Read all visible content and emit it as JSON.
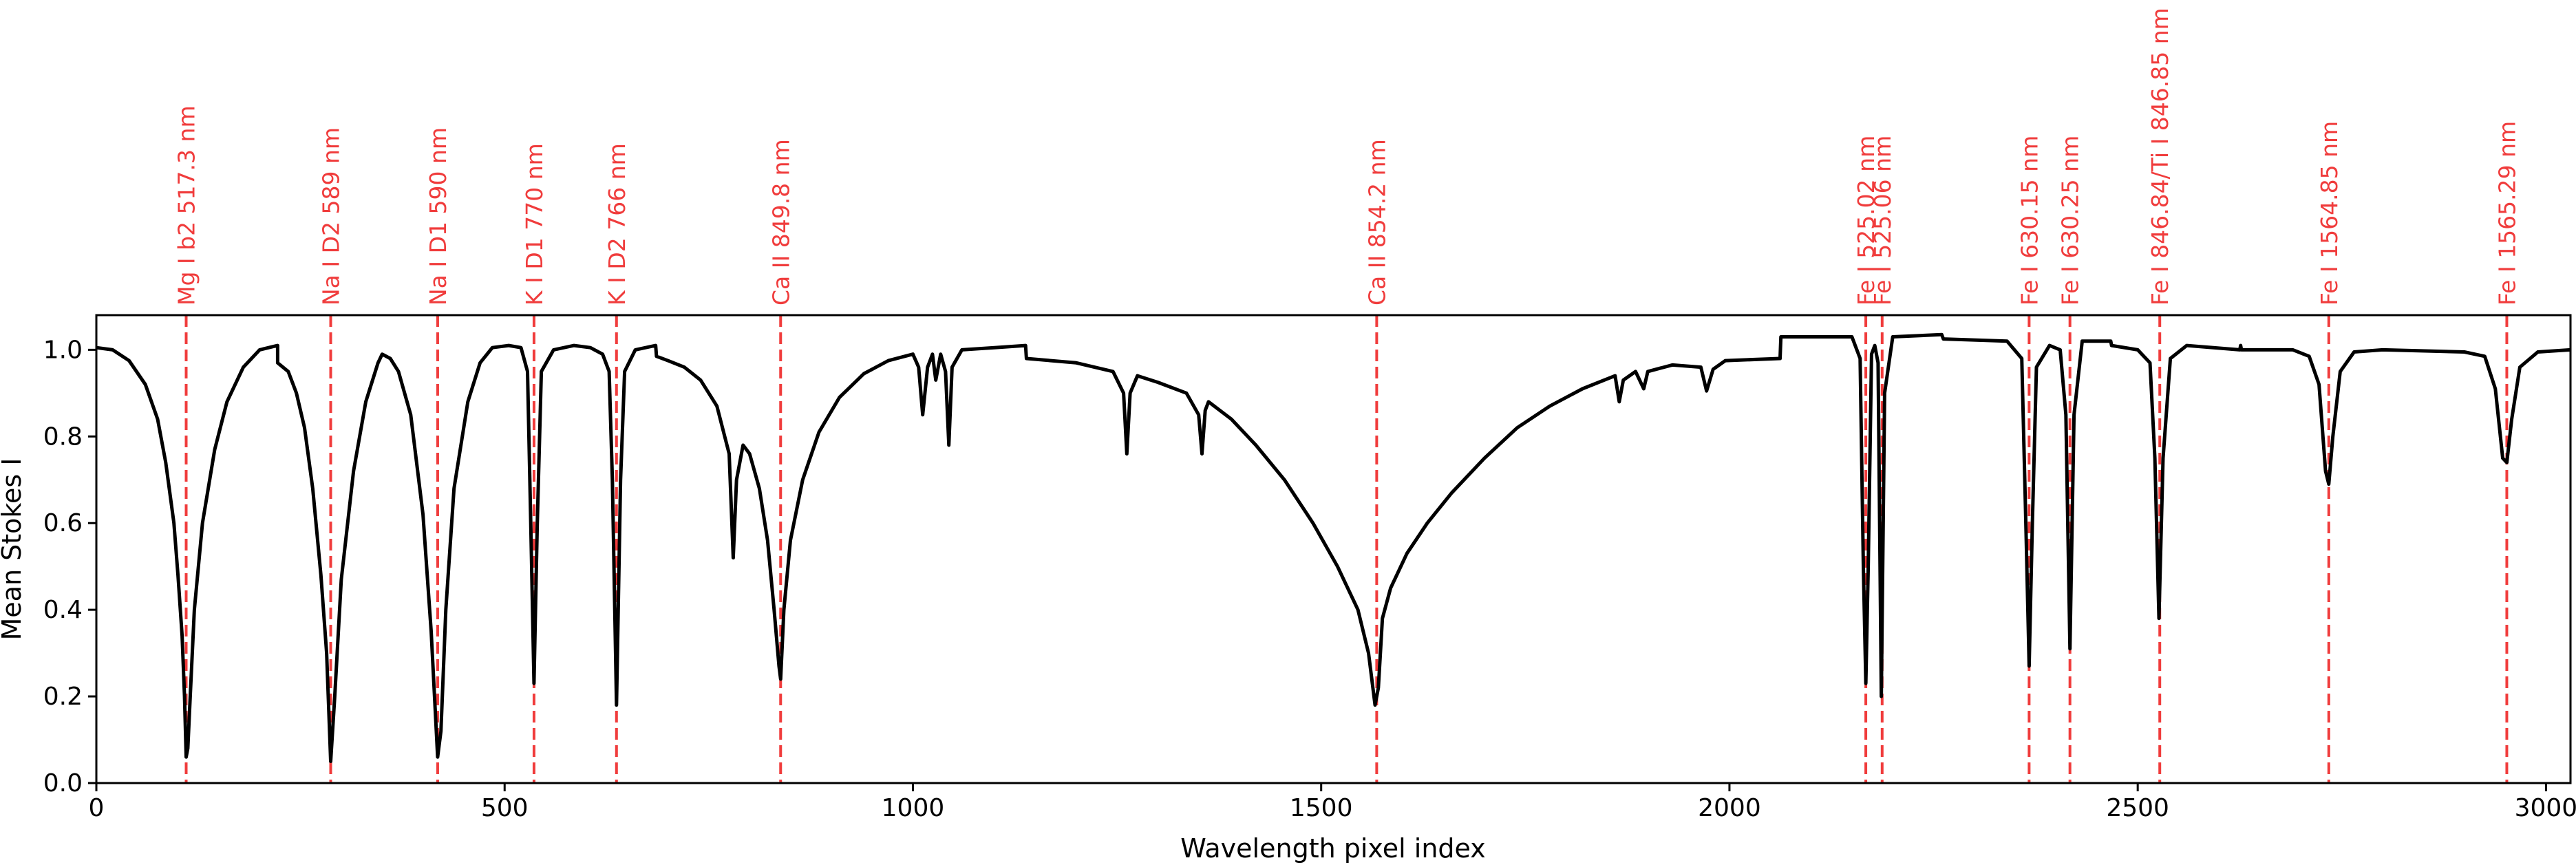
{
  "chart_data": {
    "type": "line",
    "title": "",
    "xlabel": "Wavelength pixel index",
    "ylabel": "Mean Stokes I",
    "xlim": [
      0,
      3030
    ],
    "ylim": [
      0.0,
      1.08
    ],
    "grid": false,
    "xticks": [
      0,
      500,
      1000,
      1500,
      2000,
      2500,
      3000
    ],
    "xtick_labels": [
      "0",
      "500",
      "1000",
      "1500",
      "2000",
      "2500",
      "3000"
    ],
    "yticks": [
      0.0,
      0.2,
      0.4,
      0.6,
      0.8,
      1.0
    ],
    "ytick_labels": [
      "0.0",
      "0.2",
      "0.4",
      "0.6",
      "0.8",
      "1.0"
    ],
    "series_color": "#000000",
    "marker_color": "#f03c3c",
    "spectral_lines": [
      {
        "label": "Mg I b2 517.3 nm",
        "x": 110
      },
      {
        "label": "Na I D2 589 nm",
        "x": 287
      },
      {
        "label": "Na I D1 590 nm",
        "x": 418
      },
      {
        "label": "K I D1 770 nm",
        "x": 536
      },
      {
        "label": "K I D2 766 nm",
        "x": 637
      },
      {
        "label": "Ca II 849.8 nm",
        "x": 838
      },
      {
        "label": "Ca II 854.2 nm",
        "x": 1568
      },
      {
        "label": "Fe I 525.02 nm",
        "x": 2167
      },
      {
        "label": "Fe I 525.06 nm",
        "x": 2187
      },
      {
        "label": "Fe I 630.15 nm",
        "x": 2367
      },
      {
        "label": "Fe I 630.25 nm",
        "x": 2417
      },
      {
        "label": "Fe I 846.84/Ti I 846.85 nm",
        "x": 2527
      },
      {
        "label": "Fe I 1564.85 nm",
        "x": 2734
      },
      {
        "label": "Fe I 1565.29 nm",
        "x": 2952
      }
    ],
    "series": [
      {
        "name": "Mean Stokes I",
        "points": [
          [
            0,
            1.005
          ],
          [
            20,
            1.0
          ],
          [
            40,
            0.975
          ],
          [
            60,
            0.92
          ],
          [
            75,
            0.84
          ],
          [
            85,
            0.74
          ],
          [
            95,
            0.6
          ],
          [
            100,
            0.48
          ],
          [
            105,
            0.34
          ],
          [
            108,
            0.2
          ],
          [
            110,
            0.06
          ],
          [
            112,
            0.08
          ],
          [
            115,
            0.2
          ],
          [
            120,
            0.4
          ],
          [
            130,
            0.6
          ],
          [
            145,
            0.77
          ],
          [
            160,
            0.88
          ],
          [
            180,
            0.96
          ],
          [
            200,
            1.0
          ],
          [
            222,
            1.01
          ],
          [
            222,
            0.97
          ],
          [
            235,
            0.95
          ],
          [
            245,
            0.9
          ],
          [
            255,
            0.82
          ],
          [
            265,
            0.68
          ],
          [
            275,
            0.48
          ],
          [
            282,
            0.3
          ],
          [
            287,
            0.05
          ],
          [
            292,
            0.2
          ],
          [
            300,
            0.47
          ],
          [
            315,
            0.72
          ],
          [
            330,
            0.88
          ],
          [
            345,
            0.97
          ],
          [
            350,
            0.99
          ],
          [
            360,
            0.98
          ],
          [
            370,
            0.95
          ],
          [
            385,
            0.85
          ],
          [
            400,
            0.62
          ],
          [
            410,
            0.35
          ],
          [
            418,
            0.06
          ],
          [
            422,
            0.12
          ],
          [
            428,
            0.4
          ],
          [
            438,
            0.68
          ],
          [
            455,
            0.88
          ],
          [
            470,
            0.97
          ],
          [
            485,
            1.005
          ],
          [
            505,
            1.01
          ],
          [
            520,
            1.005
          ],
          [
            528,
            0.95
          ],
          [
            532,
            0.6
          ],
          [
            536,
            0.23
          ],
          [
            540,
            0.6
          ],
          [
            545,
            0.95
          ],
          [
            560,
            1.0
          ],
          [
            585,
            1.01
          ],
          [
            605,
            1.005
          ],
          [
            620,
            0.99
          ],
          [
            628,
            0.95
          ],
          [
            632,
            0.7
          ],
          [
            637,
            0.18
          ],
          [
            642,
            0.7
          ],
          [
            647,
            0.95
          ],
          [
            660,
            1.0
          ],
          [
            685,
            1.01
          ],
          [
            686,
            0.985
          ],
          [
            700,
            0.975
          ],
          [
            720,
            0.96
          ],
          [
            740,
            0.93
          ],
          [
            760,
            0.87
          ],
          [
            775,
            0.76
          ],
          [
            780,
            0.52
          ],
          [
            784,
            0.7
          ],
          [
            792,
            0.78
          ],
          [
            800,
            0.76
          ],
          [
            812,
            0.68
          ],
          [
            822,
            0.56
          ],
          [
            830,
            0.4
          ],
          [
            836,
            0.27
          ],
          [
            838,
            0.24
          ],
          [
            842,
            0.4
          ],
          [
            850,
            0.56
          ],
          [
            865,
            0.7
          ],
          [
            885,
            0.81
          ],
          [
            910,
            0.89
          ],
          [
            940,
            0.945
          ],
          [
            970,
            0.975
          ],
          [
            1000,
            0.99
          ],
          [
            1007,
            0.96
          ],
          [
            1012,
            0.85
          ],
          [
            1018,
            0.96
          ],
          [
            1024,
            0.99
          ],
          [
            1028,
            0.93
          ],
          [
            1034,
            0.99
          ],
          [
            1040,
            0.95
          ],
          [
            1044,
            0.78
          ],
          [
            1048,
            0.96
          ],
          [
            1060,
            1.0
          ],
          [
            1100,
            1.005
          ],
          [
            1138,
            1.01
          ],
          [
            1139,
            0.98
          ],
          [
            1200,
            0.97
          ],
          [
            1245,
            0.95
          ],
          [
            1258,
            0.9
          ],
          [
            1262,
            0.76
          ],
          [
            1266,
            0.9
          ],
          [
            1275,
            0.94
          ],
          [
            1300,
            0.925
          ],
          [
            1335,
            0.9
          ],
          [
            1350,
            0.85
          ],
          [
            1354,
            0.76
          ],
          [
            1358,
            0.86
          ],
          [
            1362,
            0.88
          ],
          [
            1390,
            0.84
          ],
          [
            1420,
            0.78
          ],
          [
            1455,
            0.7
          ],
          [
            1490,
            0.6
          ],
          [
            1520,
            0.5
          ],
          [
            1545,
            0.4
          ],
          [
            1558,
            0.3
          ],
          [
            1566,
            0.18
          ],
          [
            1570,
            0.22
          ],
          [
            1575,
            0.38
          ],
          [
            1585,
            0.45
          ],
          [
            1605,
            0.53
          ],
          [
            1630,
            0.6
          ],
          [
            1660,
            0.67
          ],
          [
            1700,
            0.75
          ],
          [
            1740,
            0.82
          ],
          [
            1780,
            0.87
          ],
          [
            1820,
            0.91
          ],
          [
            1860,
            0.94
          ],
          [
            1865,
            0.88
          ],
          [
            1870,
            0.93
          ],
          [
            1885,
            0.95
          ],
          [
            1895,
            0.91
          ],
          [
            1900,
            0.95
          ],
          [
            1930,
            0.965
          ],
          [
            1965,
            0.96
          ],
          [
            1972,
            0.905
          ],
          [
            1980,
            0.955
          ],
          [
            1995,
            0.975
          ],
          [
            2062,
            0.98
          ],
          [
            2063,
            1.03
          ],
          [
            2150,
            1.03
          ],
          [
            2160,
            0.98
          ],
          [
            2164,
            0.5
          ],
          [
            2167,
            0.23
          ],
          [
            2170,
            0.5
          ],
          [
            2174,
            0.99
          ],
          [
            2178,
            1.01
          ],
          [
            2182,
            0.97
          ],
          [
            2186,
            0.2
          ],
          [
            2190,
            0.9
          ],
          [
            2200,
            1.03
          ],
          [
            2260,
            1.035
          ],
          [
            2262,
            1.025
          ],
          [
            2340,
            1.02
          ],
          [
            2358,
            0.98
          ],
          [
            2363,
            0.6
          ],
          [
            2367,
            0.27
          ],
          [
            2371,
            0.6
          ],
          [
            2376,
            0.96
          ],
          [
            2392,
            1.01
          ],
          [
            2405,
            1.0
          ],
          [
            2412,
            0.85
          ],
          [
            2417,
            0.31
          ],
          [
            2422,
            0.85
          ],
          [
            2432,
            1.02
          ],
          [
            2467,
            1.02
          ],
          [
            2468,
            1.01
          ],
          [
            2500,
            1.0
          ],
          [
            2515,
            0.97
          ],
          [
            2521,
            0.75
          ],
          [
            2526,
            0.38
          ],
          [
            2531,
            0.75
          ],
          [
            2540,
            0.98
          ],
          [
            2560,
            1.01
          ],
          [
            2625,
            1.0
          ],
          [
            2626,
            1.01
          ],
          [
            2627,
            1.0
          ],
          [
            2690,
            1.0
          ],
          [
            2710,
            0.985
          ],
          [
            2722,
            0.92
          ],
          [
            2730,
            0.72
          ],
          [
            2734,
            0.69
          ],
          [
            2739,
            0.8
          ],
          [
            2748,
            0.95
          ],
          [
            2765,
            0.995
          ],
          [
            2800,
            1.0
          ],
          [
            2900,
            0.995
          ],
          [
            2925,
            0.985
          ],
          [
            2938,
            0.91
          ],
          [
            2947,
            0.75
          ],
          [
            2952,
            0.74
          ],
          [
            2958,
            0.84
          ],
          [
            2968,
            0.96
          ],
          [
            2990,
            0.995
          ],
          [
            3030,
            1.0
          ]
        ]
      }
    ]
  }
}
